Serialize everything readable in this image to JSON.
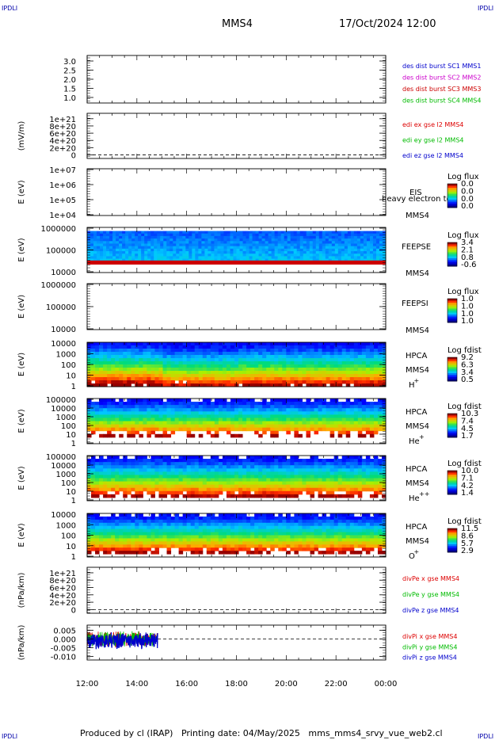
{
  "header": {
    "corner_label": "IPDLI",
    "title": "MMS4",
    "datetime": "17/Oct/2024 12:00"
  },
  "footer": "Produced by cl (IRAP)   Printing date: 04/May/2025   mms_mms4_srvy_vue_web2.cl",
  "x_axis": {
    "tick_labels": [
      "12:00",
      "14:00",
      "16:00",
      "18:00",
      "20:00",
      "22:00",
      "00:00"
    ]
  },
  "colors": {
    "des_sc1": "#0000cc",
    "des_sc2": "#cc00cc",
    "des_sc3": "#cc0000",
    "des_sc4": "#00bb00",
    "x_comp": "#dd0000",
    "y_comp": "#00bb00",
    "z_comp": "#0000cc"
  },
  "chart_data": [
    {
      "id": "des",
      "type": "line",
      "ticks": [
        "3.0",
        "2.5",
        "2.0",
        "1.5",
        "1.0"
      ],
      "legend": [
        {
          "text": "des dist burst SC1 MMS1",
          "color": "#0000cc"
        },
        {
          "text": "des dist burst SC2 MMS2",
          "color": "#cc00cc"
        },
        {
          "text": "des dist burst SC3 MMS3",
          "color": "#cc0000"
        },
        {
          "text": "des dist burst SC4 MMS4",
          "color": "#00bb00"
        }
      ]
    },
    {
      "id": "edi",
      "type": "line",
      "ylabel": "(mV/m)",
      "ticks": [
        "1e+21",
        "8e+20",
        "6e+20",
        "4e+20",
        "2e+20",
        "0"
      ],
      "legend": [
        {
          "text": "edi ex gse l2 MMS4",
          "color": "#dd0000"
        },
        {
          "text": "edi ey gse l2 MMS4",
          "color": "#00bb00"
        },
        {
          "text": "edi ez gse l2 MMS4",
          "color": "#0000cc"
        }
      ]
    },
    {
      "id": "eis",
      "type": "heatmap",
      "ylabel": "E (eV)",
      "ticks": [
        "1e+07",
        "1e+06",
        "1e+05",
        "1e+04"
      ],
      "labels": [
        "EIS",
        "MMS4"
      ],
      "extra_label": "heavy electron tof",
      "cbar_title": "Log flux",
      "cbar_ticks": [
        "0.0",
        "0.0",
        "0.0",
        "0.0"
      ]
    },
    {
      "id": "feepse",
      "type": "heatmap",
      "ylabel": "E (eV)",
      "ticks": [
        "1000000",
        "100000",
        "10000"
      ],
      "labels": [
        "FEEPSE",
        "MMS4"
      ],
      "cbar_title": "Log flux",
      "cbar_ticks": [
        "3.4",
        "2.1",
        "0.8",
        "-0.6"
      ]
    },
    {
      "id": "feepsi",
      "type": "heatmap",
      "ylabel": "E (eV)",
      "ticks": [
        "1000000",
        "100000",
        "10000"
      ],
      "labels": [
        "FEEPSI",
        "MMS4"
      ],
      "cbar_title": "Log flux",
      "cbar_ticks": [
        "1.0",
        "1.0",
        "1.0",
        "1.0"
      ]
    },
    {
      "id": "hpca_h",
      "type": "heatmap",
      "ylabel": "E (eV)",
      "ticks": [
        "10000",
        "1000",
        "100",
        "10",
        "1"
      ],
      "labels": [
        "HPCA",
        "MMS4"
      ],
      "species": "H",
      "species_sup": "+",
      "cbar_title": "Log fdist",
      "cbar_ticks": [
        "9.2",
        "6.3",
        "3.4",
        "0.5"
      ]
    },
    {
      "id": "hpca_he",
      "type": "heatmap",
      "ylabel": "E (eV)",
      "ticks": [
        "100000",
        "10000",
        "1000",
        "100",
        "10",
        "1"
      ],
      "labels": [
        "HPCA",
        "MMS4"
      ],
      "species": "He",
      "species_sup": "+",
      "cbar_title": "Log fdist",
      "cbar_ticks": [
        "10.3",
        "7.4",
        "4.5",
        "1.7"
      ]
    },
    {
      "id": "hpca_hepp",
      "type": "heatmap",
      "ylabel": "E (eV)",
      "ticks": [
        "100000",
        "10000",
        "1000",
        "100",
        "10",
        "1"
      ],
      "labels": [
        "HPCA",
        "MMS4"
      ],
      "species": "He",
      "species_sup": "++",
      "cbar_title": "Log fdist",
      "cbar_ticks": [
        "10.0",
        "7.1",
        "4.2",
        "1.4"
      ]
    },
    {
      "id": "hpca_o",
      "type": "heatmap",
      "ylabel": "E (eV)",
      "ticks": [
        "10000",
        "1000",
        "100",
        "10",
        "1"
      ],
      "labels": [
        "HPCA",
        "MMS4"
      ],
      "species": "O",
      "species_sup": "+",
      "cbar_title": "Log fdist",
      "cbar_ticks": [
        "11.5",
        "8.6",
        "5.7",
        "2.9"
      ]
    },
    {
      "id": "divpe",
      "type": "line",
      "ylabel": "(nPa/km)",
      "ticks": [
        "1e+21",
        "8e+20",
        "6e+20",
        "4e+20",
        "2e+20",
        "0"
      ],
      "legend": [
        {
          "text": "divPe x gse MMS4",
          "color": "#dd0000"
        },
        {
          "text": "divPe y gse MMS4",
          "color": "#00bb00"
        },
        {
          "text": "divPe z gse MMS4",
          "color": "#0000cc"
        }
      ]
    },
    {
      "id": "divpi",
      "type": "line",
      "ylabel": "(nPa/km)",
      "ticks": [
        "0.005",
        "0.000",
        "-0.005",
        "-0.010"
      ],
      "ylim": [
        -0.012,
        0.008
      ],
      "data_x_end": "14:50",
      "legend": [
        {
          "text": "divPi x gse MMS4",
          "color": "#dd0000"
        },
        {
          "text": "divPi y gse MMS4",
          "color": "#00bb00"
        },
        {
          "text": "divPi z gse MMS4",
          "color": "#0000cc"
        }
      ]
    }
  ]
}
